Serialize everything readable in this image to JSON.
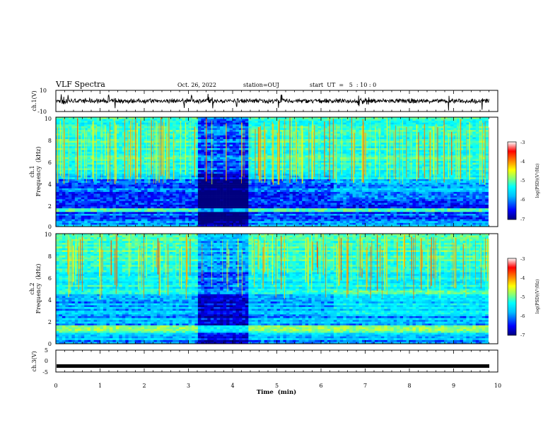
{
  "header": {
    "title": "VLF Spectra",
    "date": "Oct. 26, 2022",
    "station": "station=OUJ",
    "start_ut": "start  UT  =   5  : 10 : 0"
  },
  "colors": {
    "ch3_trace": "#000000",
    "ch1_trace": "#000000",
    "colormap": [
      "#00007f",
      "#0000ff",
      "#00bfff",
      "#00ffff",
      "#7fff7f",
      "#ffff00",
      "#ff7f00",
      "#ff0000",
      "#ffffff"
    ]
  },
  "chart_data": [
    {
      "name": "ch1-waveform",
      "type": "line",
      "ylabel": "ch.1(V)",
      "ylim": [
        -10,
        10
      ],
      "ytick_labels": [
        "10",
        "-10"
      ],
      "xlim": [
        0,
        10
      ],
      "baseline": 0,
      "spikes_min": [
        0.13,
        0.18,
        0.27,
        1.2,
        1.35,
        2.9,
        3.07,
        3.45,
        3.55,
        4.1,
        5.04,
        5.1,
        6.85,
        6.95,
        7.02,
        7.08,
        8.9,
        9.65
      ]
    },
    {
      "name": "ch1-spectrogram",
      "type": "heatmap",
      "ylabel_line1": "ch.1",
      "ylabel_line2": "Frequency  (kHz)",
      "ylim": [
        0,
        10
      ],
      "xlim": [
        0,
        10
      ],
      "ytick_labels": [
        "0",
        "2",
        "4",
        "6",
        "8",
        "10"
      ],
      "colorbar": {
        "label": "log(PSD)(V²/Hz)",
        "range": [
          -7,
          -3
        ],
        "tick_labels": [
          "-3",
          "-4",
          "-5",
          "-6",
          "-7"
        ]
      },
      "features": {
        "band_edge_khz": 4.8,
        "quiet_period_min": [
          3.2,
          4.35
        ],
        "strong_band_khz": 1.5
      }
    },
    {
      "name": "ch2-spectrogram",
      "type": "heatmap",
      "ylabel_line1": "ch.2",
      "ylabel_line2": "Frequency  (kHz)",
      "ylim": [
        0,
        10
      ],
      "xlim": [
        0,
        10
      ],
      "ytick_labels": [
        "0",
        "2",
        "4",
        "6",
        "8",
        "10"
      ],
      "colorbar": {
        "label": "log(PSD)(V²/Hz)",
        "range": [
          -7,
          -3
        ],
        "tick_labels": [
          "-3",
          "-4",
          "-5",
          "-6",
          "-7"
        ]
      },
      "features": {
        "quiet_period_min": [
          3.2,
          4.35
        ],
        "strong_band_khz": 1.3
      }
    },
    {
      "name": "ch3-waveform",
      "type": "line",
      "ylabel": "ch.3(V)",
      "ylim": [
        -5,
        5
      ],
      "ytick_labels": [
        "5",
        "0",
        "-5"
      ],
      "xlim": [
        0,
        10
      ],
      "value": -2.3
    }
  ],
  "xaxis": {
    "label": "Time  (min)",
    "tick_labels": [
      "0",
      "1",
      "2",
      "3",
      "4",
      "5",
      "6",
      "7",
      "8",
      "9",
      "10"
    ]
  }
}
